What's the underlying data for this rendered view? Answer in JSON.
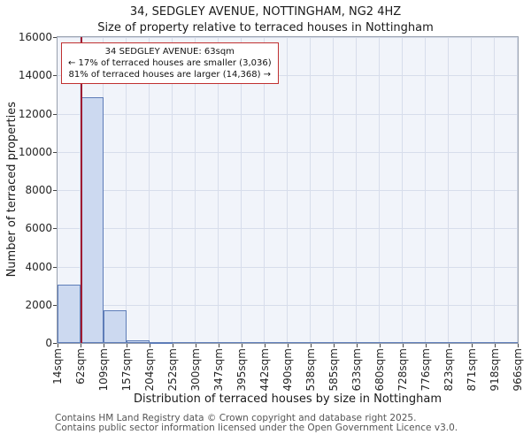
{
  "page": {
    "title_line1": "34, SEDGLEY AVENUE, NOTTINGHAM, NG2 4HZ",
    "title_line2": "Size of property relative to terraced houses in Nottingham"
  },
  "annotation": {
    "line1": "34 SEDGLEY AVENUE: 63sqm",
    "line2": "← 17% of terraced houses are smaller (3,036)",
    "line3": "81% of terraced houses are larger (14,368) →",
    "border_color": "#c03030"
  },
  "footer": {
    "line1": "Contains HM Land Registry data © Crown copyright and database right 2025.",
    "line2": "Contains public sector information licensed under the Open Government Licence v3.0."
  },
  "chart_data": {
    "type": "bar",
    "title": "34, SEDGLEY AVENUE, NOTTINGHAM, NG2 4HZ — Size of property relative to terraced houses in Nottingham",
    "xlabel": "Distribution of terraced houses by size in Nottingham",
    "ylabel": "Number of terraced properties",
    "categories": [
      "14sqm",
      "62sqm",
      "109sqm",
      "157sqm",
      "204sqm",
      "252sqm",
      "300sqm",
      "347sqm",
      "395sqm",
      "442sqm",
      "490sqm",
      "538sqm",
      "585sqm",
      "633sqm",
      "680sqm",
      "728sqm",
      "776sqm",
      "823sqm",
      "871sqm",
      "918sqm",
      "966sqm"
    ],
    "bin_edges_sqm": [
      14,
      62,
      109,
      157,
      204,
      252,
      300,
      347,
      395,
      442,
      490,
      538,
      585,
      633,
      680,
      728,
      776,
      823,
      871,
      918,
      966
    ],
    "values": [
      3036,
      12860,
      1700,
      160,
      50,
      0,
      0,
      0,
      0,
      0,
      0,
      0,
      0,
      0,
      0,
      0,
      0,
      0,
      0,
      0
    ],
    "ylim": [
      0,
      16000
    ],
    "ytick_step": 2000,
    "grid": true,
    "legend": false,
    "marker": {
      "value_sqm": 63,
      "label": "63sqm",
      "color": "#9e1b32"
    },
    "smaller_pct": 17,
    "smaller_count": 3036,
    "larger_pct": 81,
    "larger_count": 14368,
    "bar_fill": "#ccd9f0",
    "bar_border": "#5e7db8",
    "plot_bg": "#f1f4fa"
  }
}
